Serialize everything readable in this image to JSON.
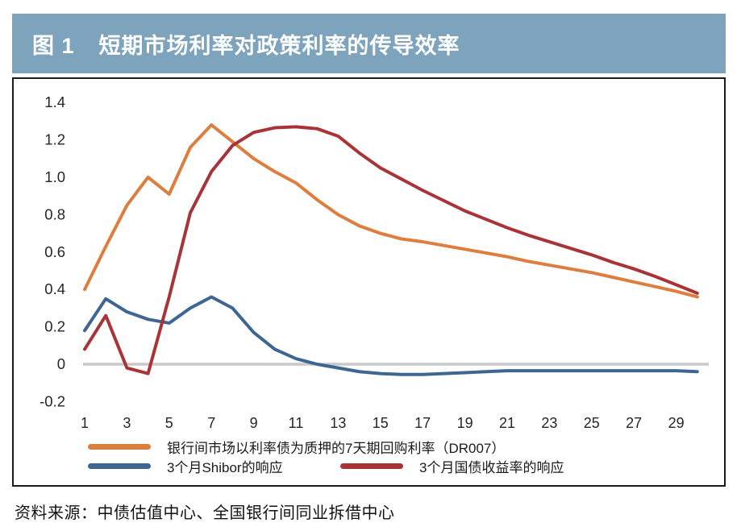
{
  "header": {
    "figure_label": "图 1",
    "title": "短期市场利率对政策利率的传导效率"
  },
  "source": {
    "text": "资料来源：中债估值中心、全国银行间同业拆借中心"
  },
  "colors": {
    "title_bar_bg": "#7DA4BC",
    "title_text": "#FFFFFF",
    "axis_text": "#262626",
    "zero_line": "#C9C9C9",
    "box_border": "#1B1B1B"
  },
  "chart_data": {
    "type": "line",
    "title": "短期市场利率对政策利率的传导效率",
    "xlabel": "",
    "ylabel": "",
    "xlim": [
      1,
      30
    ],
    "ylim": [
      -0.2,
      1.4
    ],
    "grid": false,
    "zero_line": true,
    "legend_position": "bottom",
    "x": [
      1,
      2,
      3,
      4,
      5,
      6,
      7,
      8,
      9,
      10,
      11,
      12,
      13,
      14,
      15,
      16,
      17,
      18,
      19,
      20,
      21,
      22,
      23,
      24,
      25,
      26,
      27,
      28,
      29,
      30
    ],
    "x_tick_labels": [
      "1",
      "3",
      "5",
      "7",
      "9",
      "11",
      "13",
      "15",
      "17",
      "19",
      "21",
      "23",
      "25",
      "27",
      "29"
    ],
    "x_tick_values": [
      1,
      3,
      5,
      7,
      9,
      11,
      13,
      15,
      17,
      19,
      21,
      23,
      25,
      27,
      29
    ],
    "y_ticks": [
      1.4,
      1.2,
      1.0,
      0.8,
      0.6,
      0.4,
      0.2,
      0,
      -0.2
    ],
    "y_tick_labels": [
      "1.4",
      "1.2",
      "1.0",
      "0.8",
      "0.6",
      "0.4",
      "0.2",
      "0",
      "-0.2"
    ],
    "series": [
      {
        "name": "银行间市场以利率债为质押的7天期回购利率（DR007）",
        "color": "#DD7E3F",
        "values": [
          0.4,
          0.63,
          0.85,
          1.0,
          0.91,
          1.16,
          1.28,
          1.19,
          1.1,
          1.03,
          0.97,
          0.88,
          0.8,
          0.74,
          0.7,
          0.67,
          0.655,
          0.635,
          0.615,
          0.595,
          0.575,
          0.55,
          0.53,
          0.51,
          0.49,
          0.465,
          0.44,
          0.415,
          0.39,
          0.36
        ]
      },
      {
        "name": "3个月Shibor的响应",
        "color": "#3E6693",
        "values": [
          0.18,
          0.35,
          0.28,
          0.24,
          0.22,
          0.3,
          0.36,
          0.3,
          0.17,
          0.08,
          0.03,
          0.0,
          -0.02,
          -0.04,
          -0.05,
          -0.055,
          -0.055,
          -0.05,
          -0.045,
          -0.04,
          -0.035,
          -0.035,
          -0.035,
          -0.035,
          -0.035,
          -0.035,
          -0.035,
          -0.035,
          -0.035,
          -0.04
        ]
      },
      {
        "name": "3个月国债收益率的响应",
        "color": "#A93438",
        "values": [
          0.08,
          0.26,
          -0.02,
          -0.05,
          0.36,
          0.81,
          1.03,
          1.17,
          1.24,
          1.265,
          1.27,
          1.26,
          1.22,
          1.13,
          1.05,
          0.99,
          0.93,
          0.875,
          0.82,
          0.775,
          0.73,
          0.69,
          0.655,
          0.62,
          0.585,
          0.545,
          0.51,
          0.47,
          0.425,
          0.38
        ]
      }
    ]
  }
}
